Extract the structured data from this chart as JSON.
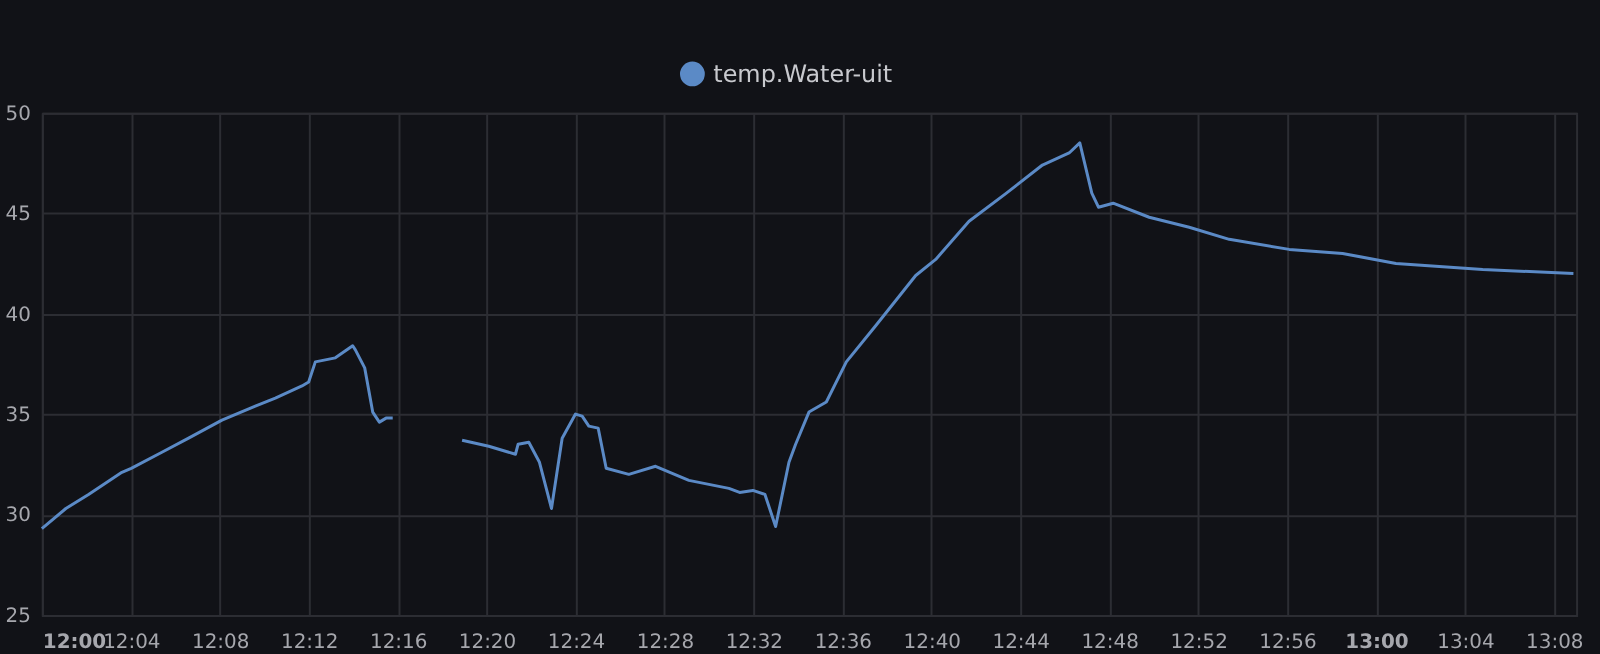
{
  "chart_data": {
    "type": "line",
    "legend": "top",
    "grid": true,
    "marker": "none",
    "line_style": "solid",
    "x": [
      12.0,
      12.018,
      12.035,
      12.06,
      12.067,
      12.09,
      12.11,
      12.135,
      12.16,
      12.175,
      12.195,
      12.2,
      12.205,
      12.22,
      12.233,
      12.235,
      12.242,
      12.248,
      12.253,
      12.258,
      12.263,
      12.283,
      12.315,
      12.335,
      12.355,
      12.357,
      12.365,
      12.373,
      12.382,
      12.39,
      12.4,
      12.405,
      12.41,
      12.417,
      12.423,
      12.44,
      12.46,
      12.485,
      12.515,
      12.523,
      12.533,
      12.542,
      12.55,
      12.56,
      12.565,
      12.575,
      12.588,
      12.603,
      12.625,
      12.655,
      12.67,
      12.695,
      12.723,
      12.75,
      12.77,
      12.778,
      12.787,
      12.792,
      12.803,
      12.83,
      12.86,
      12.89,
      12.935,
      12.975,
      13.015,
      13.08,
      13.148
    ],
    "series": [
      {
        "name": "temp.Water-uit",
        "color": "#5b8ac6",
        "values": [
          29.3,
          30.3,
          31.0,
          32.1,
          32.3,
          33.1,
          33.8,
          34.7,
          35.4,
          35.8,
          36.4,
          36.6,
          37.6,
          37.8,
          38.4,
          38.2,
          37.3,
          35.1,
          34.6,
          34.8,
          34.8,
          null,
          33.7,
          33.4,
          33.0,
          33.5,
          33.6,
          32.6,
          30.3,
          33.8,
          35.0,
          34.9,
          34.4,
          34.3,
          32.3,
          32.0,
          32.4,
          31.7,
          31.3,
          31.1,
          31.2,
          31.0,
          29.4,
          32.6,
          33.5,
          35.1,
          35.6,
          37.6,
          39.4,
          41.9,
          42.7,
          44.6,
          46.0,
          47.4,
          48.0,
          48.5,
          46.0,
          45.3,
          45.5,
          44.8,
          44.3,
          43.7,
          43.2,
          43.0,
          42.5,
          42.2,
          42.0
        ]
      }
    ],
    "xlim": [
      12.0,
      13.15
    ],
    "xticks": [
      {
        "value": 12.0,
        "label": "12:00"
      },
      {
        "value": 12.0667,
        "label": "12:04"
      },
      {
        "value": 12.1333,
        "label": "12:08"
      },
      {
        "value": 12.2,
        "label": "12:12"
      },
      {
        "value": 12.2667,
        "label": "12:16"
      },
      {
        "value": 12.3333,
        "label": "12:20"
      },
      {
        "value": 12.4,
        "label": "12:24"
      },
      {
        "value": 12.4667,
        "label": "12:28"
      },
      {
        "value": 12.5333,
        "label": "12:32"
      },
      {
        "value": 12.6,
        "label": "12:36"
      },
      {
        "value": 12.6667,
        "label": "12:40"
      },
      {
        "value": 12.7333,
        "label": "12:44"
      },
      {
        "value": 12.8,
        "label": "12:48"
      },
      {
        "value": 12.8667,
        "label": "12:52"
      },
      {
        "value": 12.9333,
        "label": "12:56"
      },
      {
        "value": 13.0,
        "label": "13:00"
      },
      {
        "value": 13.0667,
        "label": "13:04"
      },
      {
        "value": 13.1333,
        "label": "13:08"
      }
    ],
    "ylim": [
      25,
      50
    ],
    "yticks": [
      25,
      30,
      35,
      40,
      45,
      50
    ]
  }
}
